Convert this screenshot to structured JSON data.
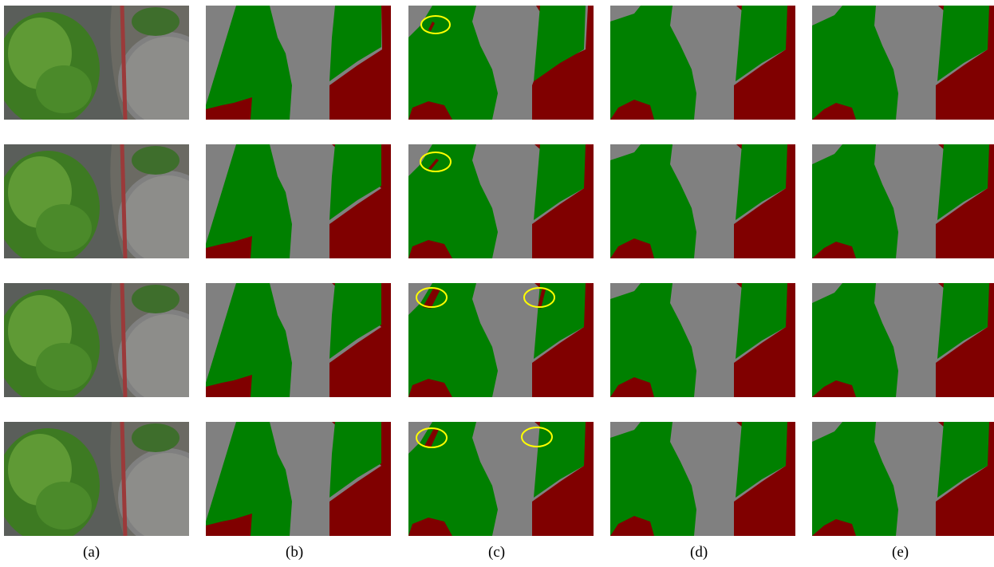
{
  "figure": {
    "columns": [
      {
        "label": "(a)",
        "content": "aerial-photo"
      },
      {
        "label": "(b)",
        "content": "segmentation-map"
      },
      {
        "label": "(c)",
        "content": "segmentation-map"
      },
      {
        "label": "(d)",
        "content": "segmentation-map"
      },
      {
        "label": "(e)",
        "content": "segmentation-map"
      }
    ],
    "rows": 4,
    "highlight_markers": [
      {
        "row": 1,
        "column": "(c)",
        "count": 1
      },
      {
        "row": 2,
        "column": "(c)",
        "count": 1
      },
      {
        "row": 3,
        "column": "(c)",
        "count": 2
      },
      {
        "row": 4,
        "column": "(c)",
        "count": 2
      }
    ],
    "colors": {
      "vegetation": "#008000",
      "building": "#800000",
      "road": "#808080",
      "highlight": "#ffff00"
    }
  }
}
